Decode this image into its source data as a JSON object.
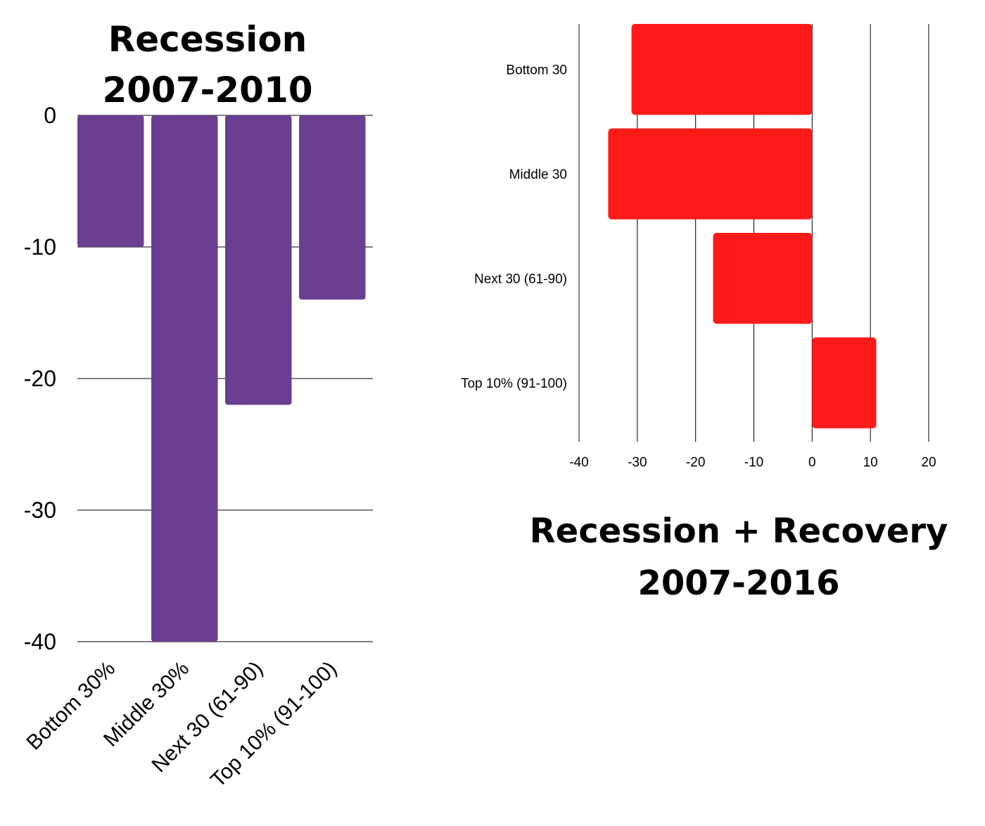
{
  "chart_data": [
    {
      "type": "bar",
      "orientation": "vertical",
      "title_lines": [
        "Recession",
        "2007-2010"
      ],
      "categories": [
        "Bottom 30%",
        "Middle 30%",
        "Next 30 (61-90)",
        "Top 10% (91-100)"
      ],
      "values": [
        -10,
        -40,
        -22,
        -14
      ],
      "ylim": [
        -40,
        0
      ],
      "yticks": [
        0,
        -10,
        -20,
        -30,
        -40
      ],
      "grid": true,
      "color": "#6A3F91"
    },
    {
      "type": "bar",
      "orientation": "horizontal",
      "title_lines": [
        "Recession + Recovery",
        "2007-2016"
      ],
      "categories": [
        "Bottom 30",
        "Middle 30",
        "Next 30 (61-90)",
        "Top 10% (91-100)"
      ],
      "values": [
        -31,
        -35,
        -17,
        11
      ],
      "xlim": [
        -40,
        20
      ],
      "xticks": [
        -40,
        -30,
        -20,
        -10,
        0,
        10,
        20
      ],
      "grid": true,
      "color": "#FF1A1A"
    }
  ]
}
